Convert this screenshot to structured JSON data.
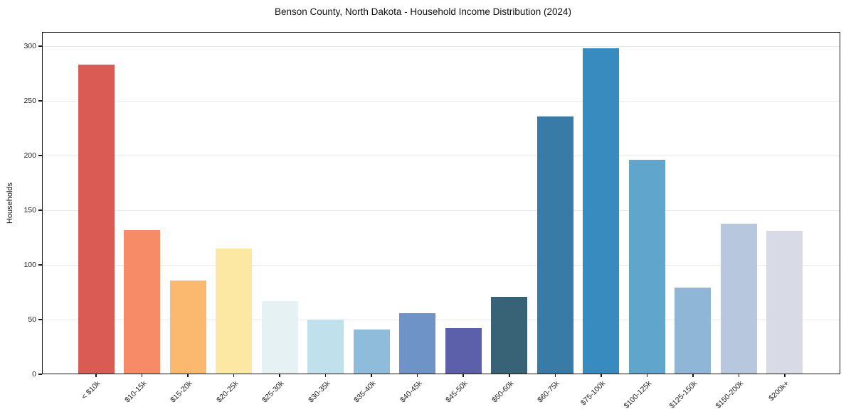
{
  "title": "Benson County, North Dakota - Household Income Distribution (2024)",
  "chart_data": {
    "type": "bar",
    "title": "Benson County, North Dakota - Household Income Distribution (2024)",
    "xlabel": "",
    "ylabel": "Households",
    "categories": [
      "< $10k",
      "$10-15k",
      "$15-20k",
      "$20-25k",
      "$25-30k",
      "$30-35k",
      "$35-40k",
      "$40-45k",
      "$45-50k",
      "$50-60k",
      "$60-75k",
      "$75-100k",
      "$100-125k",
      "$125-150k",
      "$150-200k",
      "$200k+"
    ],
    "values": [
      283,
      132,
      86,
      115,
      67,
      50,
      41,
      56,
      42,
      71,
      236,
      298,
      196,
      79,
      138,
      131
    ],
    "bar_colors": [
      "#da5b53",
      "#f78b68",
      "#fab96f",
      "#fce8a3",
      "#e6f1f3",
      "#c0e0ec",
      "#8fbcdb",
      "#6e93c6",
      "#5c5fa9",
      "#386377",
      "#377ba6",
      "#388bbf",
      "#60a6cc",
      "#8fb6d6",
      "#b7c8de",
      "#d8dae6"
    ],
    "ylim": [
      0,
      313
    ],
    "yticks": [
      0,
      50,
      100,
      150,
      200,
      250,
      300
    ],
    "grid": "horizontal-only",
    "legend": "none",
    "background_color": "#ffffff",
    "gridline_color": "#e9e9e9",
    "spine_color": "#1a1a1a",
    "tick_label_color": "#1f1f1f"
  }
}
